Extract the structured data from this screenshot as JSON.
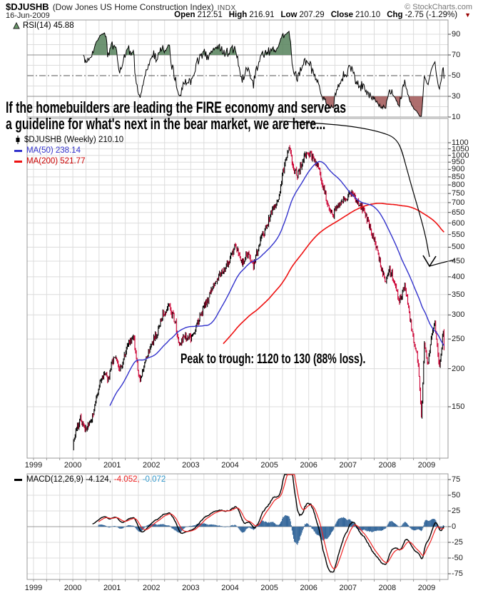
{
  "header": {
    "symbol": "$DJUSHB",
    "name": "(Dow Jones US Home Construction Index)",
    "exchange": "INDX",
    "copyright": "© StockCharts.com",
    "date": "16-Jun-2009",
    "open_label": "Open",
    "open": "212.51",
    "high_label": "High",
    "high": "216.91",
    "low_label": "Low",
    "low": "207.29",
    "close_label": "Close",
    "close": "210.10",
    "chg_label": "Chg",
    "chg": "-2.75 (-1.29%)",
    "chg_triangle": "▼"
  },
  "legends": {
    "rsi": "RSI(14) 45.88",
    "price": "$DJUSHB (Weekly) 210.10",
    "ma50": "MA(50) 238.14",
    "ma200": "MA(200) 521.77",
    "macd_label": "MACD(12,26,9) -4.124,",
    "macd_signal_value": "-4.052,",
    "macd_hist_value": "-0.072"
  },
  "annotations": {
    "line1": "If the homebuilders are leading the FIRE economy and serve as",
    "line2": "a guideline for what's next in the bear market, we are here...",
    "peak_trough": "Peak to trough: 1120 to 130 (88% loss)."
  },
  "chart_data": {
    "type": "candlestick",
    "title": "$DJUSHB (Weekly) 210.10",
    "x_ticks": [
      1999,
      2000,
      2001,
      2002,
      2003,
      2004,
      2005,
      2006,
      2007,
      2008,
      2009
    ],
    "price_axis": {
      "scale": "log",
      "ticks": [
        1100,
        1050,
        1000,
        950,
        900,
        850,
        800,
        750,
        700,
        650,
        600,
        550,
        500,
        450,
        400,
        350,
        300,
        250,
        200,
        150
      ]
    },
    "rsi_axis": {
      "ticks": [
        90,
        70,
        50,
        30,
        10
      ],
      "overbought": 70,
      "oversold": 30,
      "mid": 50,
      "light": [
        90,
        80,
        60,
        40,
        20
      ]
    },
    "macd_axis": {
      "ticks": [
        75,
        50,
        25,
        0,
        -25,
        -50,
        -75
      ]
    },
    "indicators": {
      "rsi_period": 14,
      "ma_fast": 50,
      "ma_slow": 200,
      "macd": [
        12,
        26,
        9
      ]
    },
    "last_values": {
      "close": 210.1,
      "open": 212.51,
      "high": 216.91,
      "low": 207.29,
      "ma50": 238.14,
      "ma200": 521.77,
      "rsi": 45.88,
      "macd": -4.124,
      "macd_signal": -4.052,
      "macd_hist": -0.072
    },
    "peak": 1120,
    "trough": 130,
    "loss_pct": 88,
    "price_keypoints": [
      [
        2000.0,
        112
      ],
      [
        2000.1,
        128
      ],
      [
        2000.2,
        138
      ],
      [
        2000.3,
        126
      ],
      [
        2000.45,
        132
      ],
      [
        2000.6,
        158
      ],
      [
        2000.75,
        192
      ],
      [
        2000.9,
        184
      ],
      [
        2001.05,
        222
      ],
      [
        2001.2,
        196
      ],
      [
        2001.4,
        243
      ],
      [
        2001.55,
        252
      ],
      [
        2001.62,
        214
      ],
      [
        2001.72,
        180
      ],
      [
        2001.85,
        215
      ],
      [
        2002.0,
        242
      ],
      [
        2002.15,
        262
      ],
      [
        2002.3,
        303
      ],
      [
        2002.45,
        322
      ],
      [
        2002.6,
        286
      ],
      [
        2002.72,
        240
      ],
      [
        2002.85,
        258
      ],
      [
        2003.0,
        250
      ],
      [
        2003.15,
        278
      ],
      [
        2003.3,
        310
      ],
      [
        2003.45,
        340
      ],
      [
        2003.6,
        380
      ],
      [
        2003.75,
        405
      ],
      [
        2003.9,
        432
      ],
      [
        2004.05,
        478
      ],
      [
        2004.15,
        505
      ],
      [
        2004.3,
        438
      ],
      [
        2004.45,
        478
      ],
      [
        2004.6,
        436
      ],
      [
        2004.75,
        520
      ],
      [
        2004.9,
        570
      ],
      [
        2005.0,
        622
      ],
      [
        2005.1,
        680
      ],
      [
        2005.2,
        700
      ],
      [
        2005.3,
        820
      ],
      [
        2005.4,
        950
      ],
      [
        2005.5,
        1090
      ],
      [
        2005.58,
        930
      ],
      [
        2005.72,
        860
      ],
      [
        2005.85,
        960
      ],
      [
        2005.98,
        1035
      ],
      [
        2006.1,
        975
      ],
      [
        2006.22,
        930
      ],
      [
        2006.35,
        810
      ],
      [
        2006.5,
        672
      ],
      [
        2006.62,
        638
      ],
      [
        2006.78,
        702
      ],
      [
        2006.95,
        722
      ],
      [
        2007.1,
        752
      ],
      [
        2007.25,
        705
      ],
      [
        2007.4,
        662
      ],
      [
        2007.52,
        598
      ],
      [
        2007.65,
        536
      ],
      [
        2007.8,
        452
      ],
      [
        2007.95,
        382
      ],
      [
        2008.05,
        425
      ],
      [
        2008.18,
        392
      ],
      [
        2008.3,
        330
      ],
      [
        2008.45,
        372
      ],
      [
        2008.55,
        308
      ],
      [
        2008.67,
        248
      ],
      [
        2008.78,
        210
      ],
      [
        2008.87,
        135
      ],
      [
        2008.94,
        242
      ],
      [
        2009.02,
        205
      ],
      [
        2009.12,
        252
      ],
      [
        2009.22,
        278
      ],
      [
        2009.32,
        196
      ],
      [
        2009.42,
        262
      ],
      [
        2009.46,
        210
      ]
    ],
    "colors": {
      "candle_up": "#000000",
      "candle_down": "#cc0033",
      "ma50": "#3333cc",
      "ma200": "#ee1111",
      "rsi_line": "#000000",
      "rsi_fill_high": "#55815a",
      "rsi_fill_low": "#a05555",
      "macd_line": "#000000",
      "macd_signal": "#ee2222",
      "macd_hist": "#36689b",
      "grid": "#dcdcdc",
      "grid_strong": "#8c8c8c",
      "panel_border": "#999999",
      "annotation": "#000000"
    }
  }
}
